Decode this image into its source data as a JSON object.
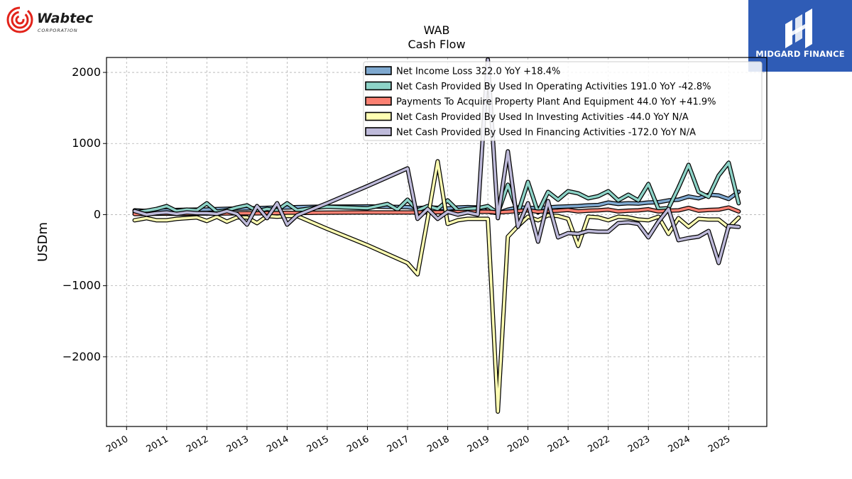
{
  "branding": {
    "company_logo_text": "Wabtec",
    "company_logo_sub": "CORPORATION",
    "publisher_logo_text": "MIDGARD FINANCE",
    "publisher_color": "#2f5cb6",
    "company_color": "#e2231a"
  },
  "chart_data": {
    "type": "line",
    "title": "WAB",
    "subtitle": "Cash Flow",
    "ylabel": "USDm",
    "xlabel": "",
    "ylim": [
      -2980,
      2210
    ],
    "xlim": [
      2009.5,
      2025.95
    ],
    "yticks": [
      -2000,
      -1000,
      0,
      1000,
      2000
    ],
    "ytick_labels": [
      "−2000",
      "−1000",
      "0",
      "1000",
      "2000"
    ],
    "xticks": [
      2010,
      2011,
      2012,
      2013,
      2014,
      2015,
      2016,
      2017,
      2018,
      2019,
      2020,
      2021,
      2022,
      2023,
      2024,
      2025
    ],
    "xtick_labels": [
      "2010",
      "2011",
      "2012",
      "2013",
      "2014",
      "2015",
      "2016",
      "2017",
      "2018",
      "2019",
      "2020",
      "2021",
      "2022",
      "2023",
      "2024",
      "2025"
    ],
    "grid": true,
    "legend_position": "top-right",
    "series": [
      {
        "name": "Net Income Loss",
        "legend_label": "Net Income Loss  322.0 YoY +18.4%",
        "color": "#7ea8cf",
        "points": [
          [
            2010.2,
            60
          ],
          [
            2010.5,
            50
          ],
          [
            2010.75,
            55
          ],
          [
            2011.0,
            60
          ],
          [
            2011.25,
            65
          ],
          [
            2011.5,
            68
          ],
          [
            2011.75,
            70
          ],
          [
            2012.0,
            72
          ],
          [
            2012.25,
            78
          ],
          [
            2012.5,
            82
          ],
          [
            2012.75,
            85
          ],
          [
            2013.0,
            88
          ],
          [
            2013.25,
            90
          ],
          [
            2013.5,
            95
          ],
          [
            2013.75,
            98
          ],
          [
            2014.0,
            100
          ],
          [
            2014.25,
            105
          ],
          [
            2014.5,
            108
          ],
          [
            2014.75,
            110
          ],
          [
            2015.0,
            112
          ],
          [
            2016.0,
            115
          ],
          [
            2017.0,
            105
          ],
          [
            2017.25,
            90
          ],
          [
            2017.5,
            100
          ],
          [
            2017.75,
            95
          ],
          [
            2018.0,
            85
          ],
          [
            2018.25,
            100
          ],
          [
            2018.5,
            105
          ],
          [
            2018.75,
            100
          ],
          [
            2019.0,
            40
          ],
          [
            2019.25,
            20
          ],
          [
            2019.5,
            70
          ],
          [
            2019.75,
            100
          ],
          [
            2020.0,
            95
          ],
          [
            2020.25,
            90
          ],
          [
            2020.5,
            100
          ],
          [
            2020.75,
            110
          ],
          [
            2021.0,
            115
          ],
          [
            2021.25,
            120
          ],
          [
            2021.5,
            130
          ],
          [
            2021.75,
            135
          ],
          [
            2022.0,
            170
          ],
          [
            2022.25,
            150
          ],
          [
            2022.5,
            160
          ],
          [
            2022.75,
            155
          ],
          [
            2023.0,
            170
          ],
          [
            2023.25,
            175
          ],
          [
            2023.5,
            200
          ],
          [
            2023.75,
            210
          ],
          [
            2024.0,
            255
          ],
          [
            2024.25,
            230
          ],
          [
            2024.5,
            280
          ],
          [
            2024.75,
            270
          ],
          [
            2025.0,
            220
          ],
          [
            2025.25,
            322
          ]
        ]
      },
      {
        "name": "Net Cash Provided By Used In Operating Activities",
        "legend_label": "Net Cash Provided By Used In Operating Activities  191.0 YoY -42.8%",
        "color": "#8dd3c7",
        "points": [
          [
            2010.2,
            30
          ],
          [
            2010.5,
            55
          ],
          [
            2010.75,
            80
          ],
          [
            2011.0,
            120
          ],
          [
            2011.25,
            50
          ],
          [
            2011.5,
            70
          ],
          [
            2011.75,
            60
          ],
          [
            2012.0,
            160
          ],
          [
            2012.25,
            40
          ],
          [
            2012.5,
            60
          ],
          [
            2012.75,
            100
          ],
          [
            2013.0,
            130
          ],
          [
            2013.25,
            50
          ],
          [
            2013.5,
            80
          ],
          [
            2013.75,
            60
          ],
          [
            2014.0,
            160
          ],
          [
            2014.25,
            60
          ],
          [
            2014.5,
            80
          ],
          [
            2014.75,
            100
          ],
          [
            2015.0,
            110
          ],
          [
            2016.0,
            90
          ],
          [
            2016.5,
            150
          ],
          [
            2016.75,
            70
          ],
          [
            2017.0,
            210
          ],
          [
            2017.25,
            60
          ],
          [
            2017.5,
            120
          ],
          [
            2017.75,
            80
          ],
          [
            2018.0,
            200
          ],
          [
            2018.25,
            60
          ],
          [
            2018.5,
            80
          ],
          [
            2018.75,
            90
          ],
          [
            2019.0,
            120
          ],
          [
            2019.25,
            20
          ],
          [
            2019.5,
            420
          ],
          [
            2019.75,
            20
          ],
          [
            2020.0,
            460
          ],
          [
            2020.25,
            30
          ],
          [
            2020.5,
            320
          ],
          [
            2020.75,
            210
          ],
          [
            2021.0,
            330
          ],
          [
            2021.25,
            300
          ],
          [
            2021.5,
            230
          ],
          [
            2021.75,
            260
          ],
          [
            2022.0,
            330
          ],
          [
            2022.25,
            200
          ],
          [
            2022.5,
            280
          ],
          [
            2022.75,
            200
          ],
          [
            2023.0,
            430
          ],
          [
            2023.25,
            80
          ],
          [
            2023.5,
            90
          ],
          [
            2023.75,
            380
          ],
          [
            2024.0,
            700
          ],
          [
            2024.25,
            320
          ],
          [
            2024.5,
            250
          ],
          [
            2024.75,
            550
          ],
          [
            2025.0,
            730
          ],
          [
            2025.25,
            160
          ]
        ]
      },
      {
        "name": "Payments To Acquire Property Plant And Equipment",
        "legend_label": "Payments To Acquire Property Plant And Equipment  44.0 YoY +41.9%",
        "color": "#fb8072",
        "points": [
          [
            2010.2,
            8
          ],
          [
            2010.5,
            10
          ],
          [
            2010.75,
            12
          ],
          [
            2011.0,
            14
          ],
          [
            2011.25,
            10
          ],
          [
            2011.5,
            12
          ],
          [
            2011.75,
            14
          ],
          [
            2012.0,
            16
          ],
          [
            2012.25,
            14
          ],
          [
            2012.5,
            16
          ],
          [
            2012.75,
            18
          ],
          [
            2013.0,
            20
          ],
          [
            2013.25,
            18
          ],
          [
            2013.5,
            20
          ],
          [
            2013.75,
            22
          ],
          [
            2014.0,
            25
          ],
          [
            2014.25,
            22
          ],
          [
            2014.5,
            24
          ],
          [
            2014.75,
            26
          ],
          [
            2015.0,
            28
          ],
          [
            2016.0,
            30
          ],
          [
            2017.0,
            30
          ],
          [
            2017.5,
            32
          ],
          [
            2018.0,
            35
          ],
          [
            2018.5,
            38
          ],
          [
            2019.0,
            40
          ],
          [
            2019.25,
            30
          ],
          [
            2019.5,
            40
          ],
          [
            2019.75,
            50
          ],
          [
            2020.0,
            60
          ],
          [
            2020.25,
            40
          ],
          [
            2020.5,
            50
          ],
          [
            2020.75,
            55
          ],
          [
            2021.0,
            65
          ],
          [
            2021.25,
            45
          ],
          [
            2021.5,
            55
          ],
          [
            2021.75,
            60
          ],
          [
            2022.0,
            70
          ],
          [
            2022.25,
            45
          ],
          [
            2022.5,
            55
          ],
          [
            2022.75,
            60
          ],
          [
            2023.0,
            75
          ],
          [
            2023.25,
            45
          ],
          [
            2023.5,
            55
          ],
          [
            2023.75,
            60
          ],
          [
            2024.0,
            95
          ],
          [
            2024.25,
            55
          ],
          [
            2024.5,
            65
          ],
          [
            2024.75,
            70
          ],
          [
            2025.0,
            100
          ],
          [
            2025.25,
            44
          ]
        ]
      },
      {
        "name": "Net Cash Provided By Used In Investing Activities",
        "legend_label": "Net Cash Provided By Used In Investing Activities  -44.0 YoY N/A",
        "color": "#ffffb3",
        "points": [
          [
            2010.2,
            -80
          ],
          [
            2010.5,
            -50
          ],
          [
            2010.75,
            -80
          ],
          [
            2011.0,
            -80
          ],
          [
            2011.25,
            -60
          ],
          [
            2011.5,
            -50
          ],
          [
            2011.75,
            -40
          ],
          [
            2012.0,
            -90
          ],
          [
            2012.25,
            -30
          ],
          [
            2012.5,
            -100
          ],
          [
            2012.75,
            -40
          ],
          [
            2013.0,
            -40
          ],
          [
            2013.25,
            -120
          ],
          [
            2013.5,
            -20
          ],
          [
            2013.75,
            -30
          ],
          [
            2014.0,
            -20
          ],
          [
            2014.25,
            -20
          ],
          [
            2015.0,
            -200
          ],
          [
            2016.0,
            -430
          ],
          [
            2017.0,
            -680
          ],
          [
            2017.25,
            -840
          ],
          [
            2017.5,
            -60
          ],
          [
            2017.75,
            750
          ],
          [
            2018.0,
            -130
          ],
          [
            2018.25,
            -80
          ],
          [
            2018.5,
            -60
          ],
          [
            2018.75,
            -60
          ],
          [
            2019.0,
            -60
          ],
          [
            2019.25,
            -2770
          ],
          [
            2019.5,
            -310
          ],
          [
            2019.75,
            -160
          ],
          [
            2020.0,
            -30
          ],
          [
            2020.25,
            -80
          ],
          [
            2020.5,
            -10
          ],
          [
            2020.75,
            -20
          ],
          [
            2021.0,
            -60
          ],
          [
            2021.25,
            -440
          ],
          [
            2021.5,
            -30
          ],
          [
            2021.75,
            -40
          ],
          [
            2022.0,
            -80
          ],
          [
            2022.25,
            -30
          ],
          [
            2022.5,
            -40
          ],
          [
            2022.75,
            -70
          ],
          [
            2023.0,
            -80
          ],
          [
            2023.25,
            -30
          ],
          [
            2023.5,
            -270
          ],
          [
            2023.75,
            -50
          ],
          [
            2024.0,
            -170
          ],
          [
            2024.25,
            -60
          ],
          [
            2024.5,
            -70
          ],
          [
            2024.75,
            -70
          ],
          [
            2025.0,
            -180
          ],
          [
            2025.25,
            -44
          ]
        ]
      },
      {
        "name": "Net Cash Provided By Used In Financing Activities",
        "legend_label": "Net Cash Provided By Used In Financing Activities  -172.0 YoY N/A",
        "color": "#bebada",
        "points": [
          [
            2010.2,
            50
          ],
          [
            2010.5,
            0
          ],
          [
            2010.75,
            20
          ],
          [
            2011.0,
            30
          ],
          [
            2011.25,
            10
          ],
          [
            2011.5,
            30
          ],
          [
            2011.75,
            20
          ],
          [
            2012.0,
            20
          ],
          [
            2012.25,
            10
          ],
          [
            2012.5,
            50
          ],
          [
            2012.75,
            10
          ],
          [
            2013.0,
            -140
          ],
          [
            2013.25,
            120
          ],
          [
            2013.5,
            -50
          ],
          [
            2013.75,
            160
          ],
          [
            2014.0,
            -140
          ],
          [
            2014.25,
            -10
          ],
          [
            2015.0,
            160
          ],
          [
            2016.0,
            400
          ],
          [
            2017.0,
            650
          ],
          [
            2017.25,
            -60
          ],
          [
            2017.5,
            80
          ],
          [
            2017.75,
            -60
          ],
          [
            2018.0,
            40
          ],
          [
            2018.25,
            0
          ],
          [
            2018.5,
            30
          ],
          [
            2018.75,
            0
          ],
          [
            2019.0,
            2180
          ],
          [
            2019.25,
            -50
          ],
          [
            2019.5,
            890
          ],
          [
            2019.75,
            -170
          ],
          [
            2020.0,
            160
          ],
          [
            2020.25,
            -380
          ],
          [
            2020.5,
            190
          ],
          [
            2020.75,
            -320
          ],
          [
            2021.0,
            -260
          ],
          [
            2021.25,
            -270
          ],
          [
            2021.5,
            -230
          ],
          [
            2021.75,
            -240
          ],
          [
            2022.0,
            -240
          ],
          [
            2022.25,
            -120
          ],
          [
            2022.5,
            -110
          ],
          [
            2022.75,
            -130
          ],
          [
            2023.0,
            -320
          ],
          [
            2023.25,
            -100
          ],
          [
            2023.5,
            80
          ],
          [
            2023.75,
            -360
          ],
          [
            2024.0,
            -330
          ],
          [
            2024.25,
            -310
          ],
          [
            2024.5,
            -230
          ],
          [
            2024.75,
            -680
          ],
          [
            2025.0,
            -160
          ],
          [
            2025.25,
            -172
          ]
        ]
      }
    ]
  }
}
